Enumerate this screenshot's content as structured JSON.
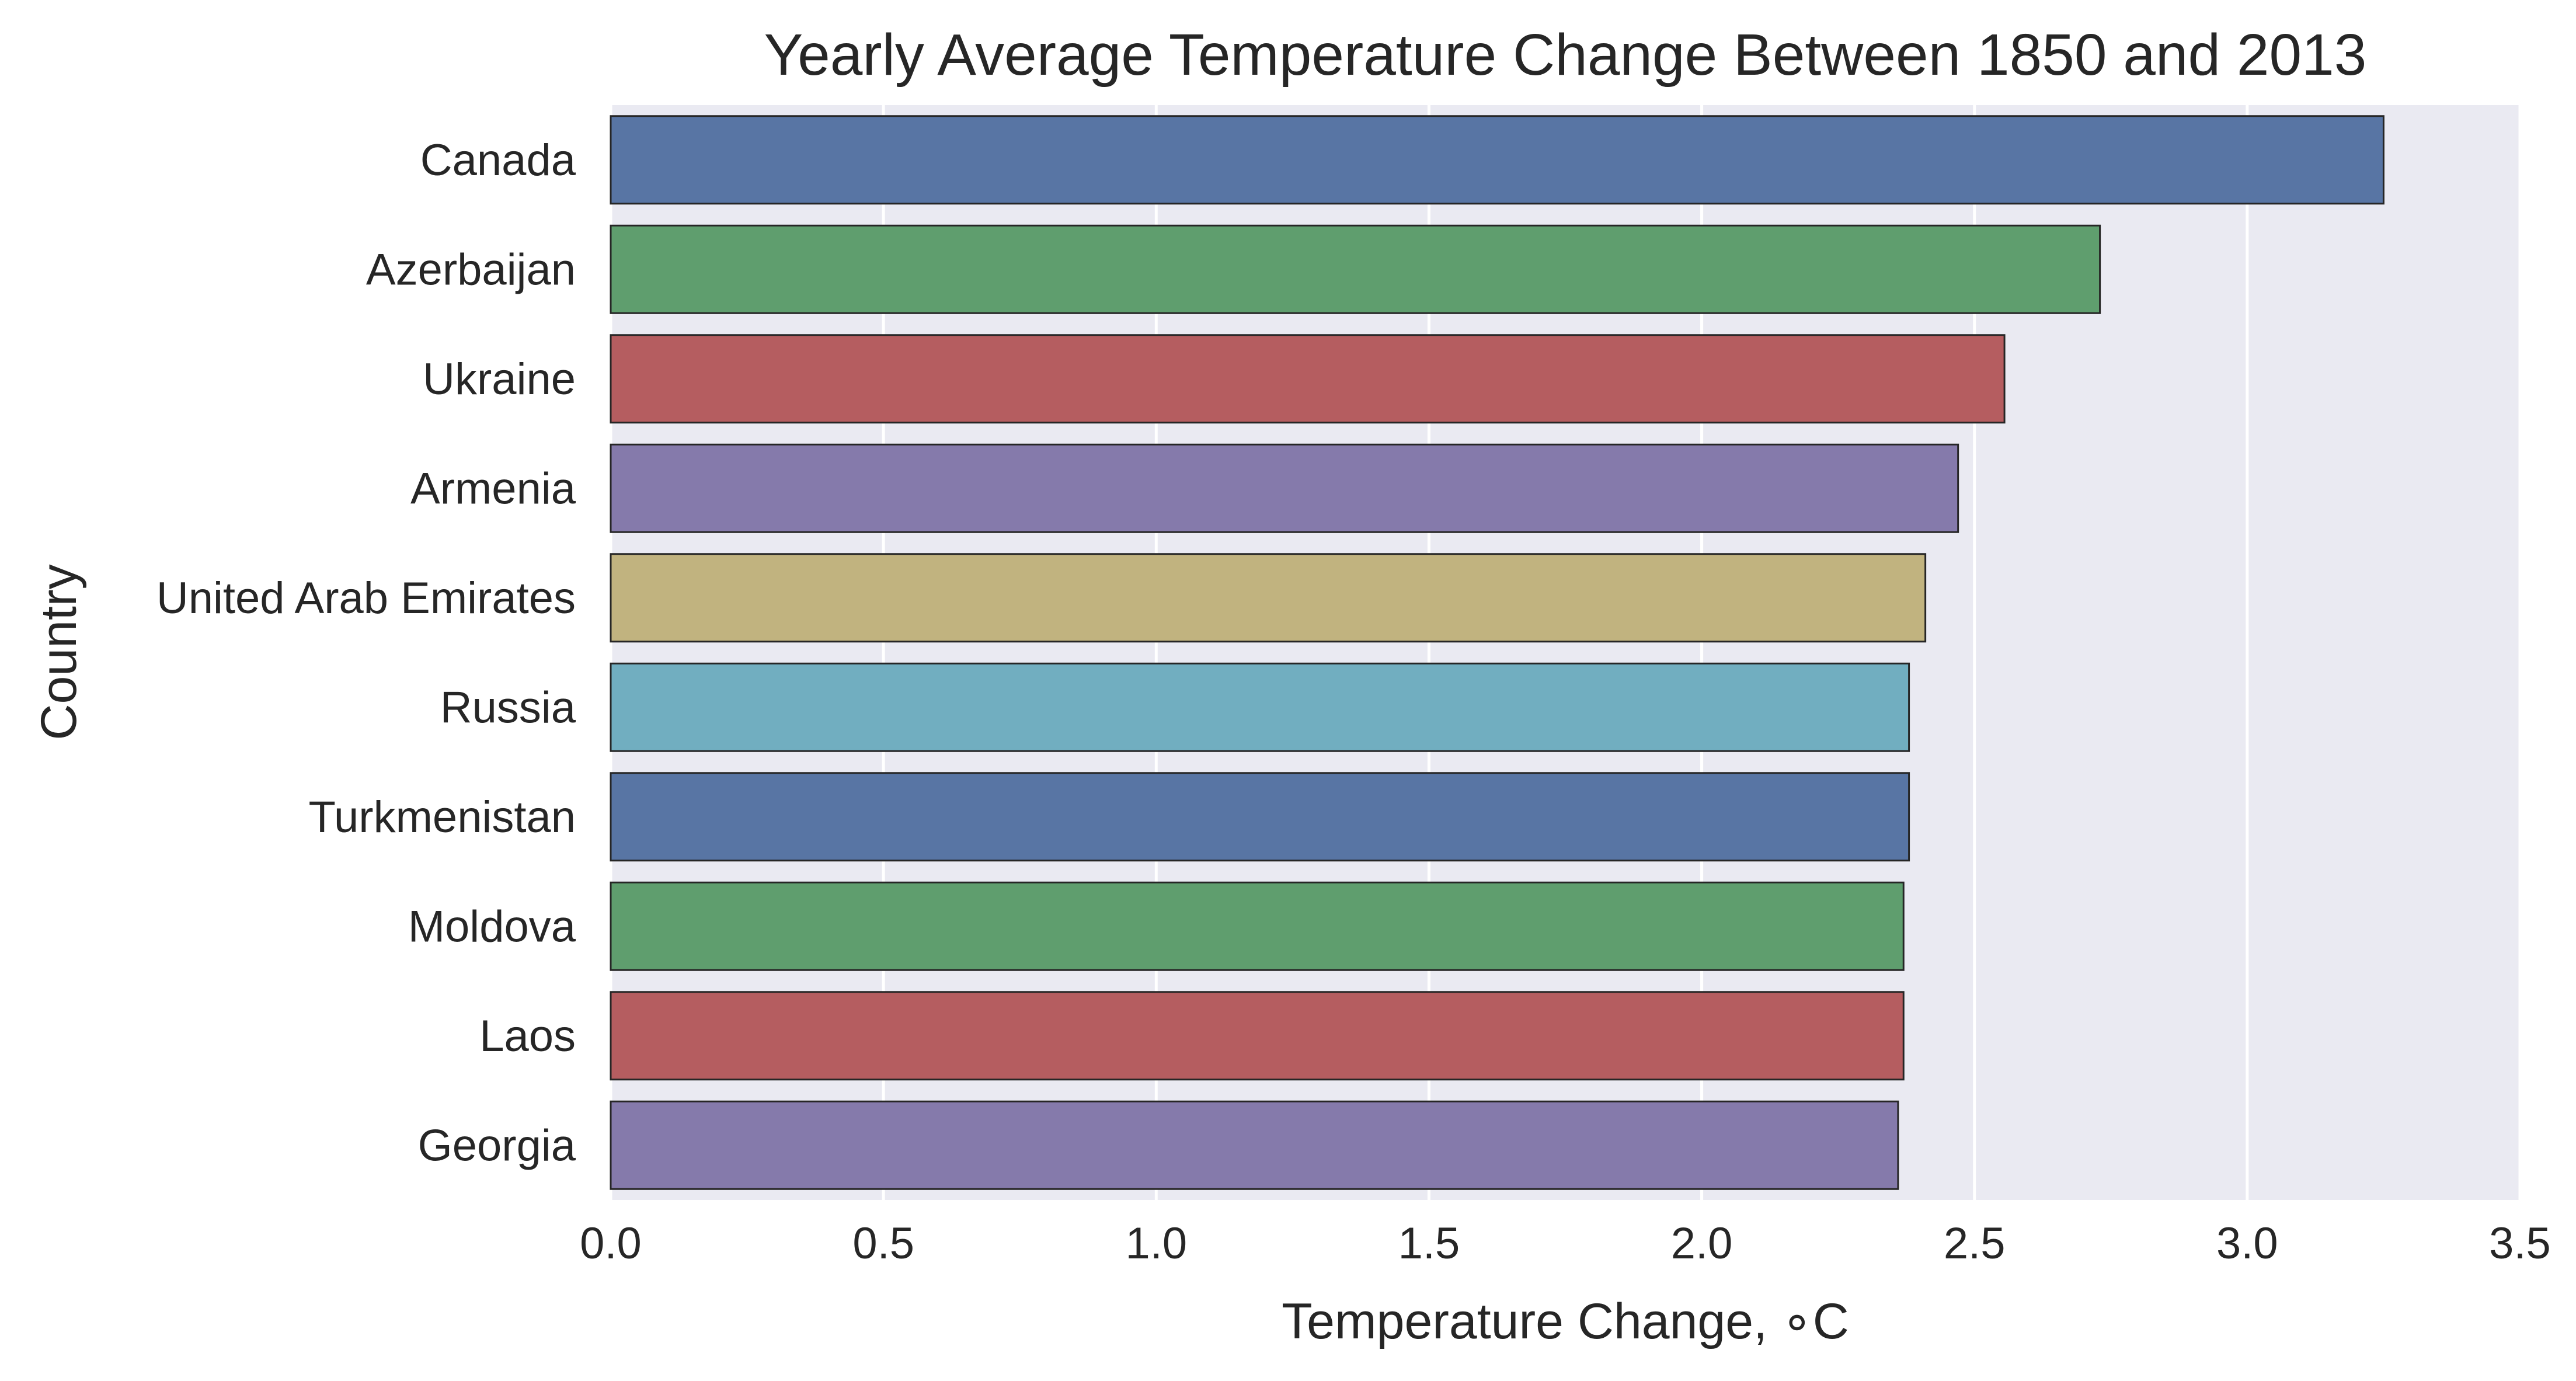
{
  "chart_data": {
    "type": "bar",
    "orientation": "horizontal",
    "title": "Yearly Average Temperature Change Between 1850 and 2013",
    "xlabel": "Temperature Change, ∘C",
    "ylabel": "Country",
    "categories": [
      "Canada",
      "Azerbaijan",
      "Ukraine",
      "Armenia",
      "United Arab Emirates",
      "Russia",
      "Turkmenistan",
      "Moldova",
      "Laos",
      "Georgia"
    ],
    "values": [
      3.25,
      2.73,
      2.555,
      2.47,
      2.41,
      2.38,
      2.38,
      2.37,
      2.37,
      2.36
    ],
    "xlim": [
      0,
      3.5
    ],
    "xticks": [
      "0.0",
      "0.5",
      "1.0",
      "1.5",
      "2.0",
      "2.5",
      "3.0",
      "3.5"
    ],
    "grid": true,
    "colors": [
      "#5875a4",
      "#5f9e6e",
      "#b55d60",
      "#857aab",
      "#c1b37f",
      "#71aec0",
      "#5875a4",
      "#5f9e6e",
      "#b55d60",
      "#857aab"
    ],
    "background_color": "#eaeaf2",
    "grid_color": "#ffffff",
    "edge_color": "#262626"
  }
}
